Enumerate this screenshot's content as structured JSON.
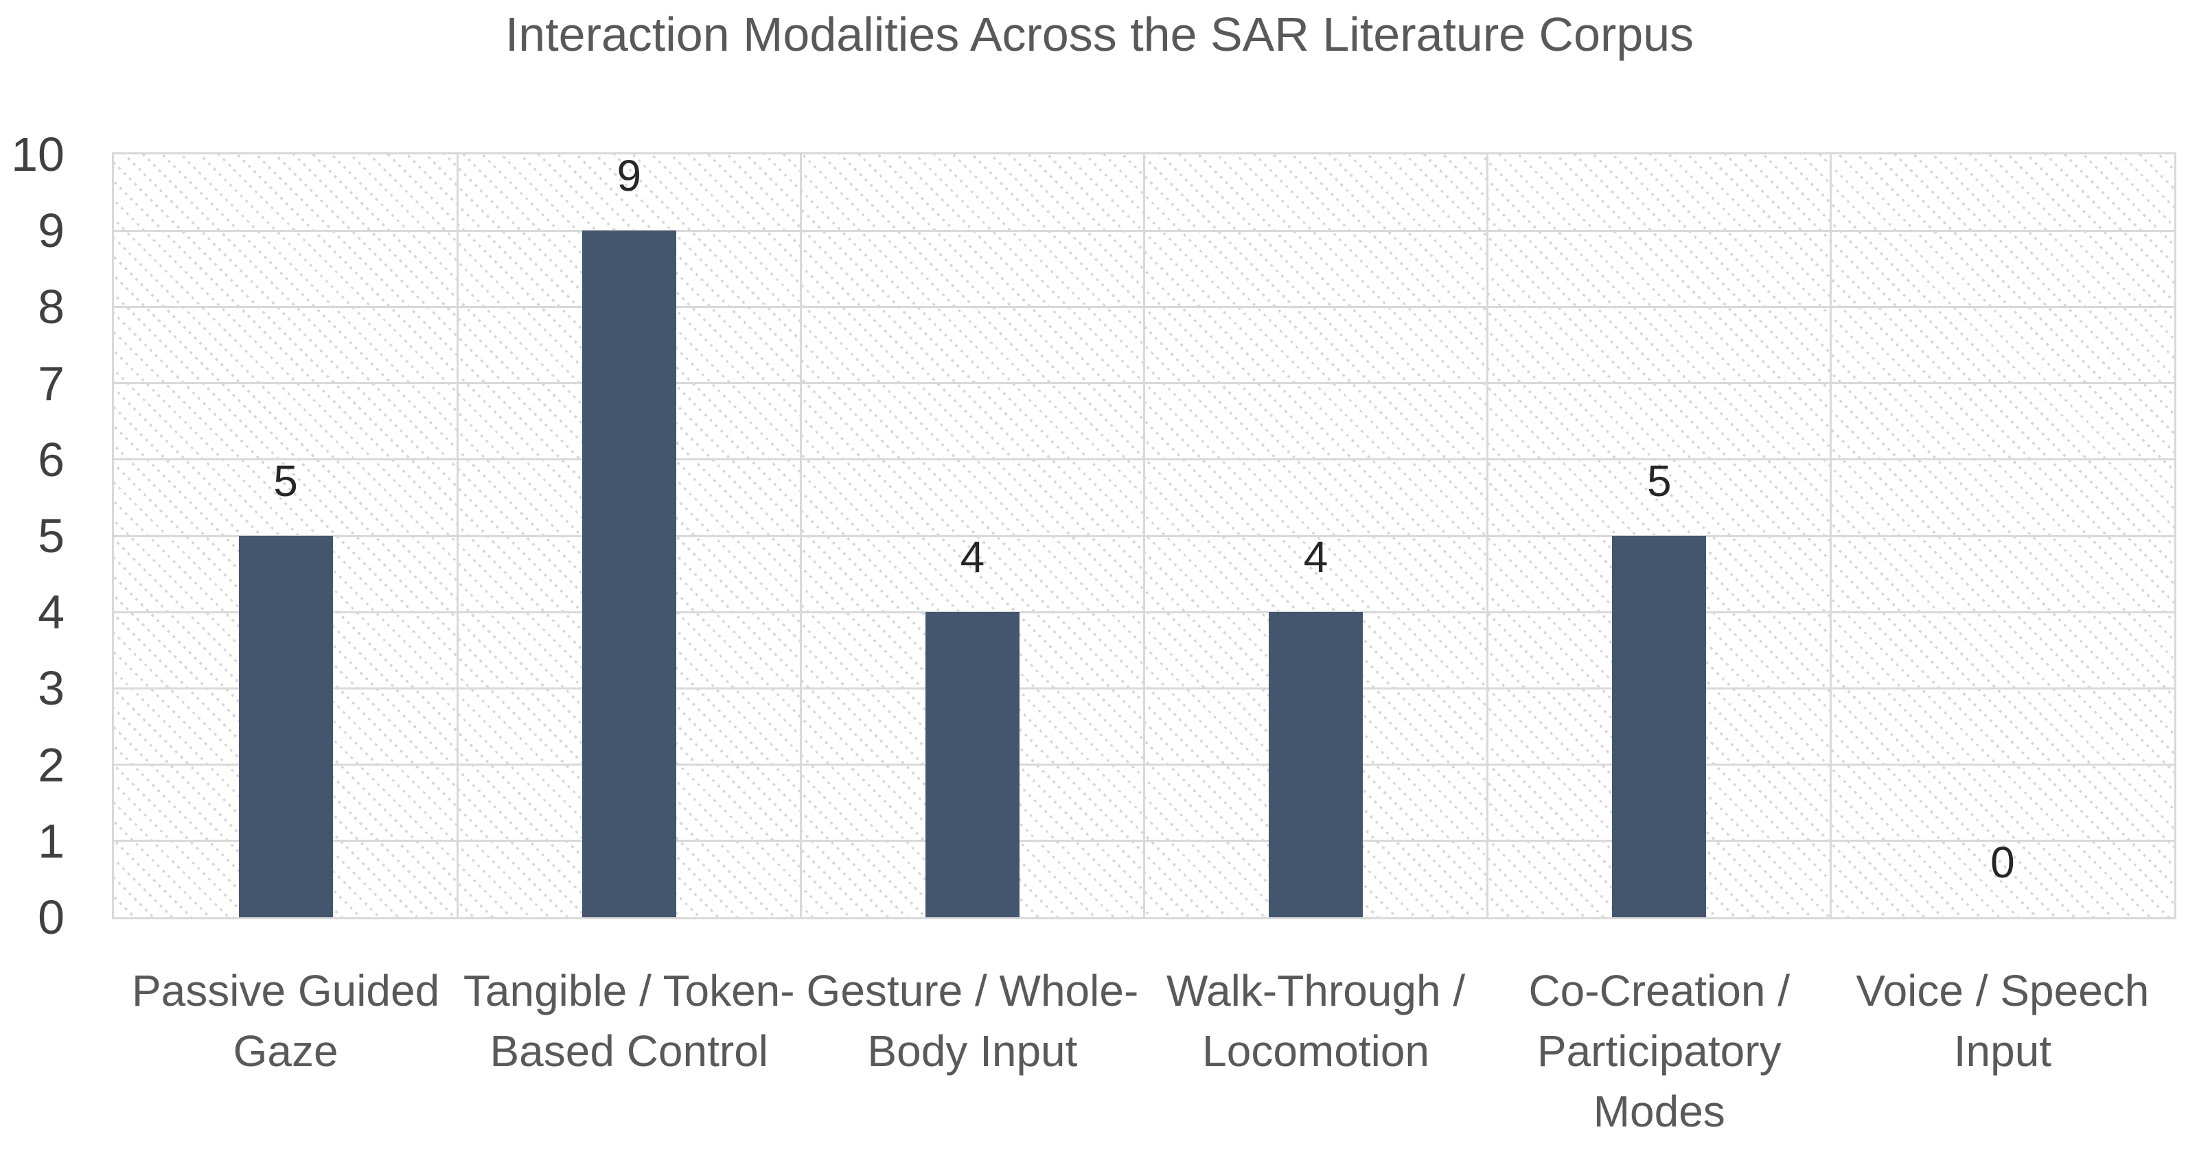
{
  "chart_data": {
    "type": "bar",
    "title": "Interaction Modalities Across the SAR Literature Corpus",
    "categories": [
      "Passive Guided Gaze",
      "Tangible / Token-Based Control",
      "Gesture / Whole-Body Input",
      "Walk-Through / Locomotion",
      "Co-Creation / Participatory Modes",
      "Voice / Speech Input"
    ],
    "values": [
      5,
      9,
      4,
      4,
      5,
      0
    ],
    "data_labels": [
      "5",
      "9",
      "4",
      "4",
      "5",
      "0"
    ],
    "xlabel": "",
    "ylabel": "",
    "ylim": [
      0,
      10
    ],
    "yticks": [
      0,
      1,
      2,
      3,
      4,
      5,
      6,
      7,
      8,
      9,
      10
    ],
    "grid": "horizontal and vertical cell gridlines",
    "legend_position": "none",
    "plot_area_fill": "dotted downward-diagonal pattern",
    "colors": {
      "bar_fill": "#44566E",
      "gridline": "#D9D9D9",
      "plot_border": "#D9D9D9",
      "pattern_dot": "#D7D7D7",
      "title_text": "#595959",
      "axis_tick_text": "#404040",
      "category_text": "#595959",
      "value_label_text": "#262626",
      "background": "#FFFFFF"
    }
  }
}
